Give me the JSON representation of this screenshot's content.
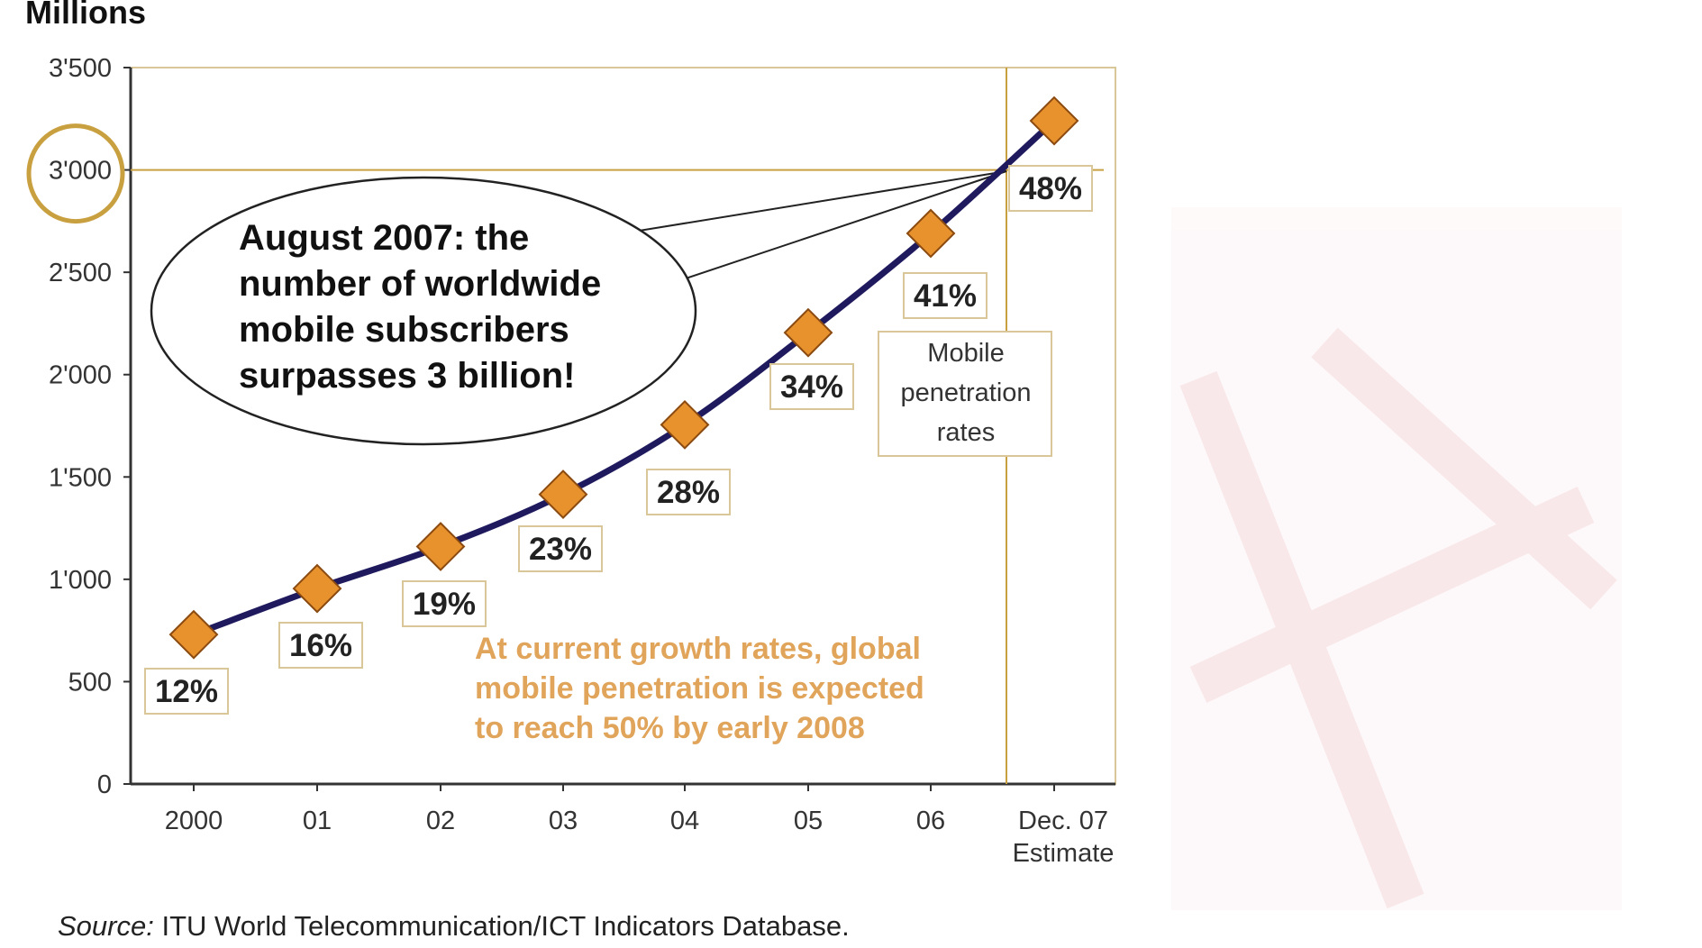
{
  "chart_data": {
    "type": "line",
    "ylabel": "Millions",
    "ylim": [
      0,
      3500
    ],
    "yticks": [
      0,
      500,
      1000,
      1500,
      2000,
      2500,
      3000,
      3500
    ],
    "ytick_labels": [
      "0",
      "500",
      "1'000",
      "1'500",
      "2'000",
      "2'500",
      "3'000",
      "3'500"
    ],
    "categories": [
      "2000",
      "01",
      "02",
      "03",
      "04",
      "05",
      "06",
      "Dec. 07 Estimate"
    ],
    "category_labels": [
      [
        "2000"
      ],
      [
        "01"
      ],
      [
        "02"
      ],
      [
        "03"
      ],
      [
        "04"
      ],
      [
        "05"
      ],
      [
        "06"
      ],
      [
        "Dec. 07",
        "Estimate"
      ]
    ],
    "series": [
      {
        "values": [
          730,
          955,
          1160,
          1415,
          1755,
          2205,
          2690,
          3240
        ],
        "data_labels": [
          "12%",
          "16%",
          "19%",
          "23%",
          "28%",
          "34%",
          "41%",
          "48%"
        ]
      }
    ],
    "reference_line_y": 3000,
    "callout": {
      "lines": [
        "August 2007: the",
        "number of worldwide",
        "mobile subscribers",
        "surpasses 3 billion!"
      ]
    },
    "legend_box": {
      "lines": [
        "Mobile",
        "penetration",
        "rates"
      ]
    },
    "annotation": {
      "lines": [
        "At current growth rates, global",
        "mobile penetration is expected",
        "to reach 50% by early 2008"
      ]
    },
    "grid": false
  },
  "source": {
    "prefix": "Source:",
    "text": " ITU World Telecommunication/ICT Indicators Database."
  },
  "colors": {
    "line": "#1f1a5e",
    "marker": "#e8922e",
    "marker_stroke": "#8a4a10",
    "highlight": "#c9a040",
    "annotation": "#e0a45a",
    "axis": "#333333"
  }
}
